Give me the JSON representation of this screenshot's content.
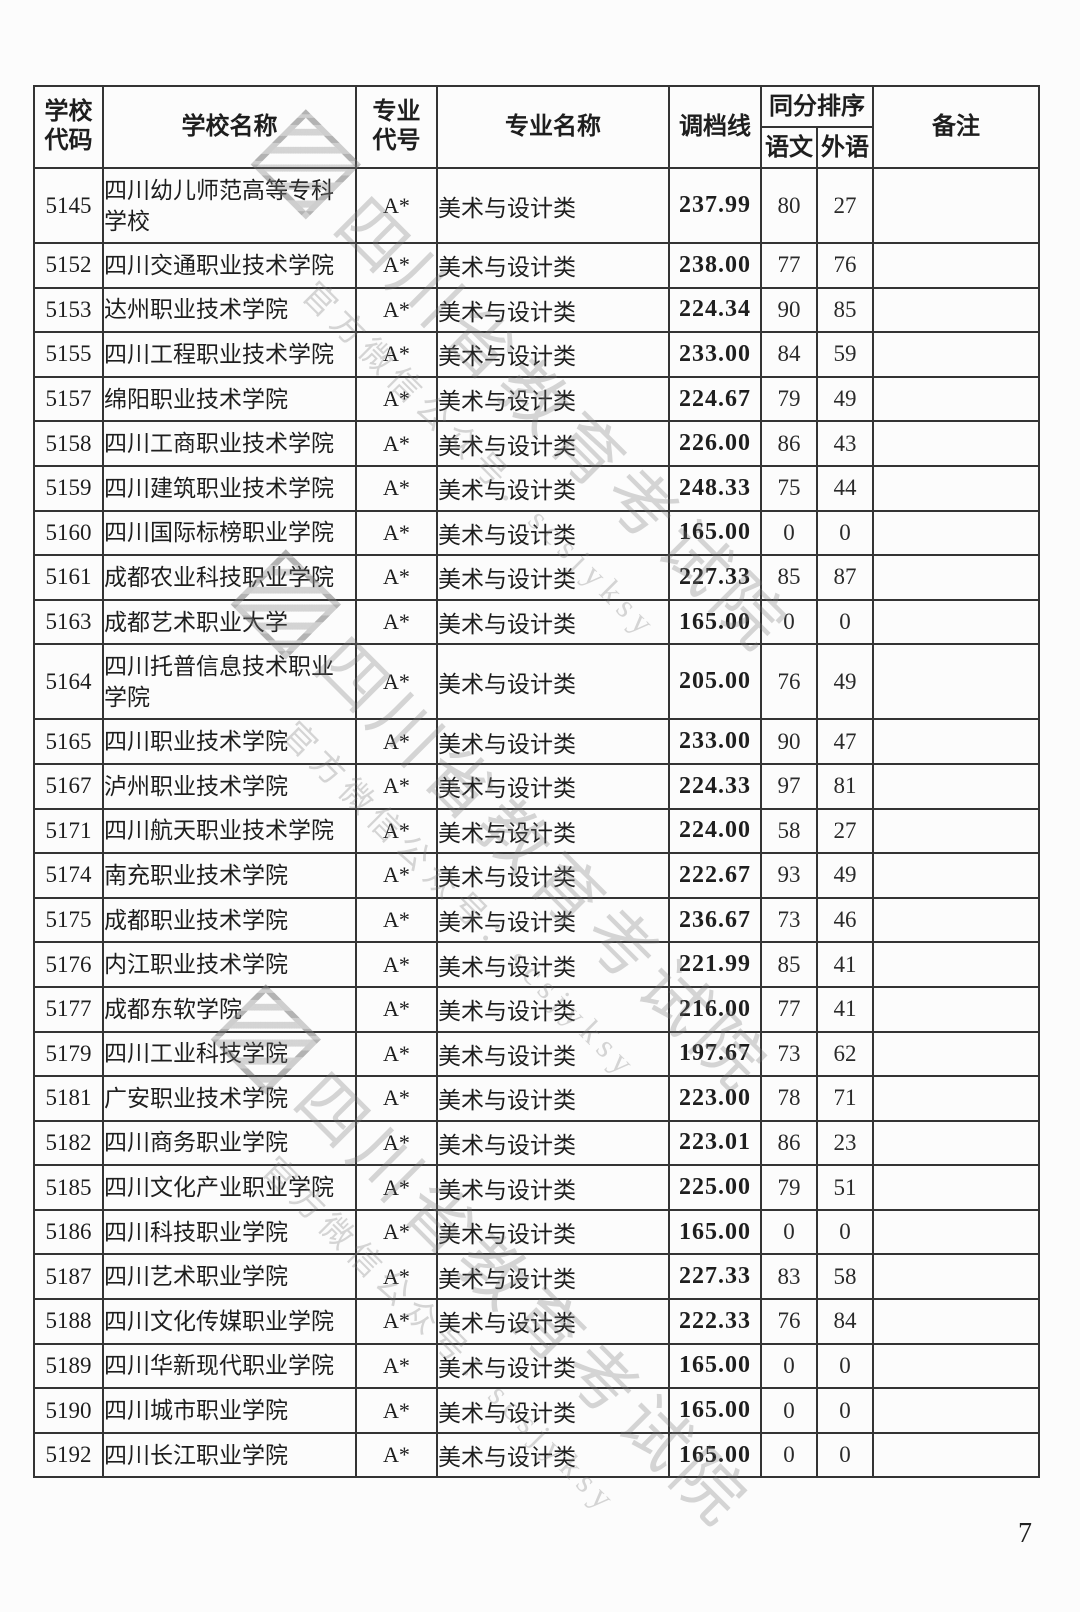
{
  "page": {
    "number": "7"
  },
  "table": {
    "headers": {
      "school_code": "学校代码",
      "school_name": "学校名称",
      "major_code": "专业代号",
      "major_name": "专业名称",
      "cutoff": "调档线",
      "tiebreak": "同分排序",
      "chinese": "语文",
      "foreign_lang": "外语",
      "note": "备注"
    },
    "rows": [
      {
        "code": "5145",
        "school": "四川幼儿师范高等专科学校",
        "major_code": "A*",
        "major": "美术与设计类",
        "cutoff": "237.99",
        "chinese": "80",
        "foreign": "27",
        "note": ""
      },
      {
        "code": "5152",
        "school": "四川交通职业技术学院",
        "major_code": "A*",
        "major": "美术与设计类",
        "cutoff": "238.00",
        "chinese": "77",
        "foreign": "76",
        "note": ""
      },
      {
        "code": "5153",
        "school": "达州职业技术学院",
        "major_code": "A*",
        "major": "美术与设计类",
        "cutoff": "224.34",
        "chinese": "90",
        "foreign": "85",
        "note": ""
      },
      {
        "code": "5155",
        "school": "四川工程职业技术学院",
        "major_code": "A*",
        "major": "美术与设计类",
        "cutoff": "233.00",
        "chinese": "84",
        "foreign": "59",
        "note": ""
      },
      {
        "code": "5157",
        "school": "绵阳职业技术学院",
        "major_code": "A*",
        "major": "美术与设计类",
        "cutoff": "224.67",
        "chinese": "79",
        "foreign": "49",
        "note": ""
      },
      {
        "code": "5158",
        "school": "四川工商职业技术学院",
        "major_code": "A*",
        "major": "美术与设计类",
        "cutoff": "226.00",
        "chinese": "86",
        "foreign": "43",
        "note": ""
      },
      {
        "code": "5159",
        "school": "四川建筑职业技术学院",
        "major_code": "A*",
        "major": "美术与设计类",
        "cutoff": "248.33",
        "chinese": "75",
        "foreign": "44",
        "note": ""
      },
      {
        "code": "5160",
        "school": "四川国际标榜职业学院",
        "major_code": "A*",
        "major": "美术与设计类",
        "cutoff": "165.00",
        "chinese": "0",
        "foreign": "0",
        "note": ""
      },
      {
        "code": "5161",
        "school": "成都农业科技职业学院",
        "major_code": "A*",
        "major": "美术与设计类",
        "cutoff": "227.33",
        "chinese": "85",
        "foreign": "87",
        "note": ""
      },
      {
        "code": "5163",
        "school": "成都艺术职业大学",
        "major_code": "A*",
        "major": "美术与设计类",
        "cutoff": "165.00",
        "chinese": "0",
        "foreign": "0",
        "note": ""
      },
      {
        "code": "5164",
        "school": "四川托普信息技术职业学院",
        "major_code": "A*",
        "major": "美术与设计类",
        "cutoff": "205.00",
        "chinese": "76",
        "foreign": "49",
        "note": ""
      },
      {
        "code": "5165",
        "school": "四川职业技术学院",
        "major_code": "A*",
        "major": "美术与设计类",
        "cutoff": "233.00",
        "chinese": "90",
        "foreign": "47",
        "note": ""
      },
      {
        "code": "5167",
        "school": "泸州职业技术学院",
        "major_code": "A*",
        "major": "美术与设计类",
        "cutoff": "224.33",
        "chinese": "97",
        "foreign": "81",
        "note": ""
      },
      {
        "code": "5171",
        "school": "四川航天职业技术学院",
        "major_code": "A*",
        "major": "美术与设计类",
        "cutoff": "224.00",
        "chinese": "58",
        "foreign": "27",
        "note": ""
      },
      {
        "code": "5174",
        "school": "南充职业技术学院",
        "major_code": "A*",
        "major": "美术与设计类",
        "cutoff": "222.67",
        "chinese": "93",
        "foreign": "49",
        "note": ""
      },
      {
        "code": "5175",
        "school": "成都职业技术学院",
        "major_code": "A*",
        "major": "美术与设计类",
        "cutoff": "236.67",
        "chinese": "73",
        "foreign": "46",
        "note": ""
      },
      {
        "code": "5176",
        "school": "内江职业技术学院",
        "major_code": "A*",
        "major": "美术与设计类",
        "cutoff": "221.99",
        "chinese": "85",
        "foreign": "41",
        "note": ""
      },
      {
        "code": "5177",
        "school": "成都东软学院",
        "major_code": "A*",
        "major": "美术与设计类",
        "cutoff": "216.00",
        "chinese": "77",
        "foreign": "41",
        "note": ""
      },
      {
        "code": "5179",
        "school": "四川工业科技学院",
        "major_code": "A*",
        "major": "美术与设计类",
        "cutoff": "197.67",
        "chinese": "73",
        "foreign": "62",
        "note": ""
      },
      {
        "code": "5181",
        "school": "广安职业技术学院",
        "major_code": "A*",
        "major": "美术与设计类",
        "cutoff": "223.00",
        "chinese": "78",
        "foreign": "71",
        "note": ""
      },
      {
        "code": "5182",
        "school": "四川商务职业学院",
        "major_code": "A*",
        "major": "美术与设计类",
        "cutoff": "223.01",
        "chinese": "86",
        "foreign": "23",
        "note": ""
      },
      {
        "code": "5185",
        "school": "四川文化产业职业学院",
        "major_code": "A*",
        "major": "美术与设计类",
        "cutoff": "225.00",
        "chinese": "79",
        "foreign": "51",
        "note": ""
      },
      {
        "code": "5186",
        "school": "四川科技职业学院",
        "major_code": "A*",
        "major": "美术与设计类",
        "cutoff": "165.00",
        "chinese": "0",
        "foreign": "0",
        "note": ""
      },
      {
        "code": "5187",
        "school": "四川艺术职业学院",
        "major_code": "A*",
        "major": "美术与设计类",
        "cutoff": "227.33",
        "chinese": "83",
        "foreign": "58",
        "note": ""
      },
      {
        "code": "5188",
        "school": "四川文化传媒职业学院",
        "major_code": "A*",
        "major": "美术与设计类",
        "cutoff": "222.33",
        "chinese": "76",
        "foreign": "84",
        "note": ""
      },
      {
        "code": "5189",
        "school": "四川华新现代职业学院",
        "major_code": "A*",
        "major": "美术与设计类",
        "cutoff": "165.00",
        "chinese": "0",
        "foreign": "0",
        "note": ""
      },
      {
        "code": "5190",
        "school": "四川城市职业学院",
        "major_code": "A*",
        "major": "美术与设计类",
        "cutoff": "165.00",
        "chinese": "0",
        "foreign": "0",
        "note": ""
      },
      {
        "code": "5192",
        "school": "四川长江职业学院",
        "major_code": "A*",
        "major": "美术与设计类",
        "cutoff": "165.00",
        "chinese": "0",
        "foreign": "0",
        "note": ""
      }
    ]
  },
  "watermark": {
    "org": "四川省教育考试院",
    "wechat_label": "官方微信公众号：",
    "wechat_id": "scsjyksy"
  }
}
